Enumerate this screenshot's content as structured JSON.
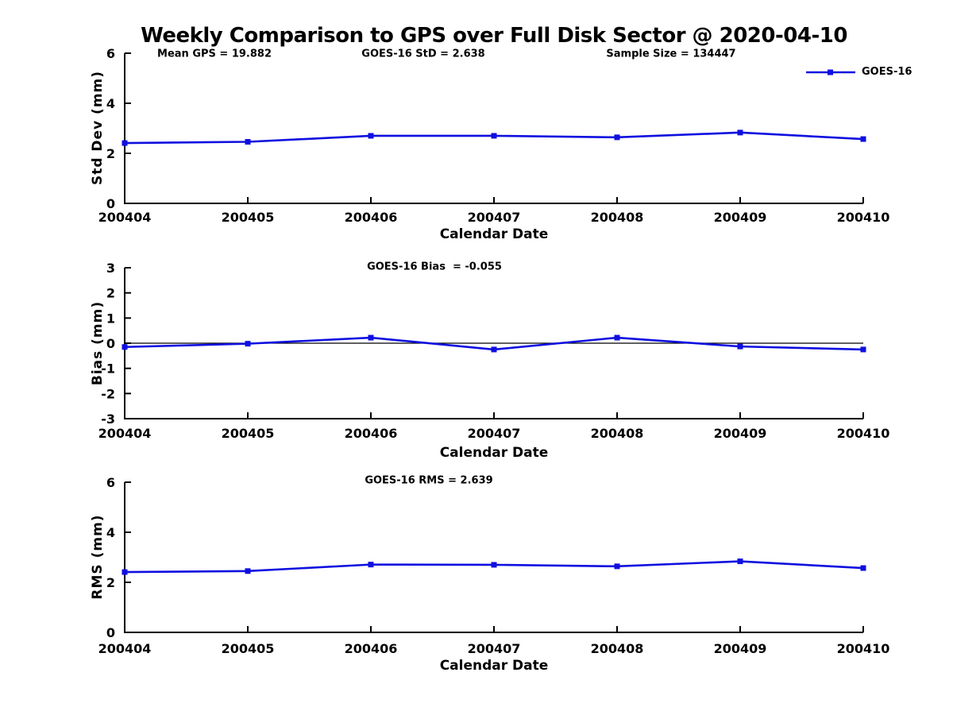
{
  "title": "Weekly Comparison to GPS over Full Disk Sector @ 2020-04-10",
  "legend": {
    "label": "GOES-16",
    "position": "top-right-of-first-panel"
  },
  "colors": {
    "series": "#0f0fe0",
    "axis": "#000000",
    "text": "#000000",
    "background": "#ffffff"
  },
  "chart_data": [
    {
      "type": "line",
      "panel": "std-dev",
      "categories": [
        "200404",
        "200405",
        "200406",
        "200407",
        "200408",
        "200409",
        "200410"
      ],
      "series": [
        {
          "name": "GOES-16",
          "values": [
            2.41,
            2.46,
            2.7,
            2.7,
            2.64,
            2.83,
            2.57
          ]
        }
      ],
      "xlabel": "Calendar Date",
      "ylabel": "Std Dev (mm)",
      "ylim": [
        0,
        6
      ],
      "yticks": [
        0,
        2,
        4,
        6
      ],
      "grid": false,
      "zero_line": false,
      "marker": "square",
      "annotations": [
        "Mean GPS = 19.882",
        "GOES-16 StD = 2.638",
        "Sample Size = 134447"
      ]
    },
    {
      "type": "line",
      "panel": "bias",
      "categories": [
        "200404",
        "200405",
        "200406",
        "200407",
        "200408",
        "200409",
        "200410"
      ],
      "series": [
        {
          "name": "GOES-16",
          "values": [
            -0.15,
            -0.02,
            0.22,
            -0.25,
            0.22,
            -0.13,
            -0.25
          ]
        }
      ],
      "xlabel": "Calendar Date",
      "ylabel": "Bias (mm)",
      "ylim": [
        -3,
        3
      ],
      "yticks": [
        -3,
        -2,
        -1,
        0,
        1,
        2,
        3
      ],
      "grid": false,
      "zero_line": true,
      "marker": "square",
      "annotations": [
        "GOES-16 Bias  = -0.055"
      ]
    },
    {
      "type": "line",
      "panel": "rms",
      "categories": [
        "200404",
        "200405",
        "200406",
        "200407",
        "200408",
        "200409",
        "200410"
      ],
      "series": [
        {
          "name": "GOES-16",
          "values": [
            2.41,
            2.45,
            2.71,
            2.7,
            2.64,
            2.84,
            2.57
          ]
        }
      ],
      "xlabel": "Calendar Date",
      "ylabel": "RMS (mm)",
      "ylim": [
        0,
        6
      ],
      "yticks": [
        0,
        2,
        4,
        6
      ],
      "grid": false,
      "zero_line": false,
      "marker": "square",
      "annotations": [
        "GOES-16 RMS = 2.639"
      ]
    }
  ]
}
